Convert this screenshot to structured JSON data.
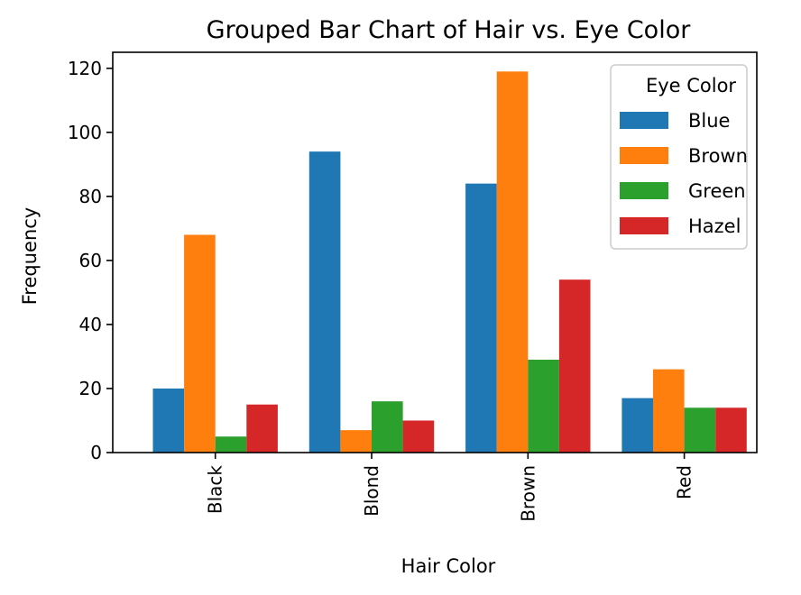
{
  "chart_data": {
    "type": "bar",
    "title": "Grouped Bar Chart of Hair vs. Eye Color",
    "xlabel": "Hair Color",
    "ylabel": "Frequency",
    "categories": [
      "Black",
      "Blond",
      "Brown",
      "Red"
    ],
    "ylim": [
      0,
      125
    ],
    "yticks": [
      0,
      20,
      40,
      60,
      80,
      100,
      120
    ],
    "grid": false,
    "legend": {
      "title": "Eye Color",
      "placement": "top-right"
    },
    "series": [
      {
        "name": "Blue",
        "color": "#1f77b4",
        "values": [
          20,
          94,
          84,
          17
        ]
      },
      {
        "name": "Brown",
        "color": "#ff7f0e",
        "values": [
          68,
          7,
          119,
          26
        ]
      },
      {
        "name": "Green",
        "color": "#2ca02c",
        "values": [
          5,
          16,
          29,
          14
        ]
      },
      {
        "name": "Hazel",
        "color": "#d62728",
        "values": [
          15,
          10,
          54,
          14
        ]
      }
    ]
  }
}
